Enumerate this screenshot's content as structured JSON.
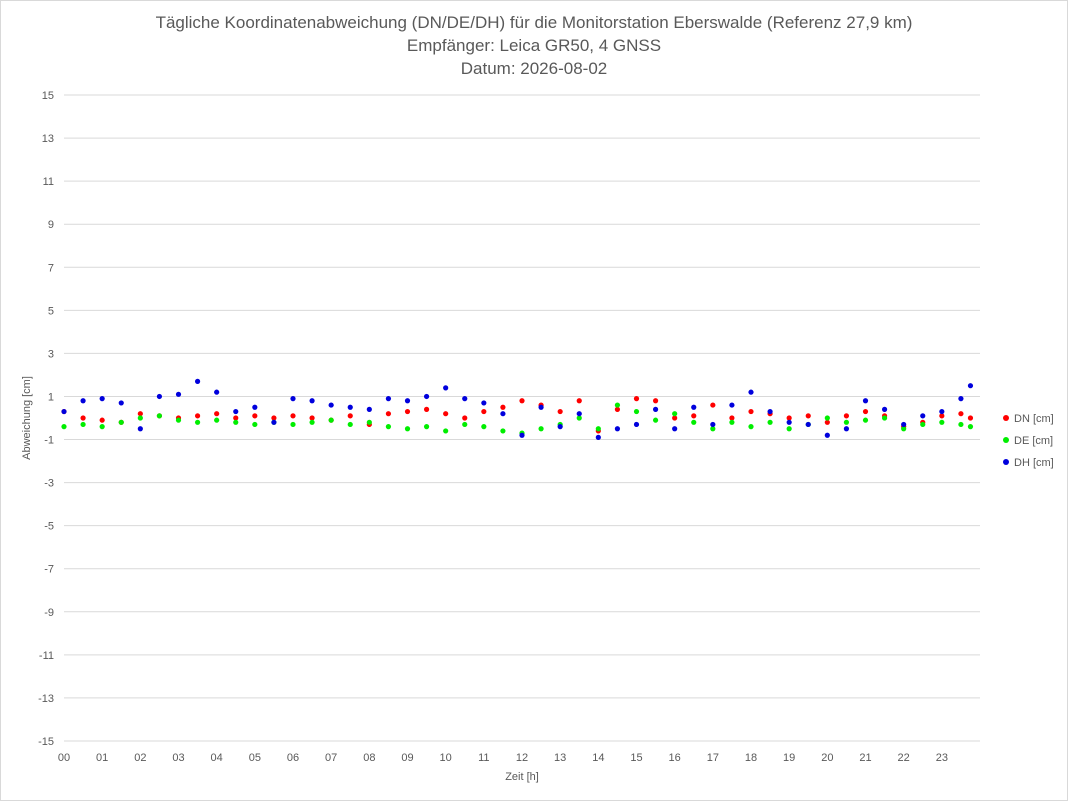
{
  "chart_data": {
    "type": "scatter",
    "title": "Tägliche Koordinatenabweichung (DN/DE/DH) für die Monitorstation Eberswalde (Referenz 27,9 km)",
    "subtitle": "Empfänger: Leica GR50, 4 GNSS",
    "date_line": "Datum: 2026-08-02",
    "xlabel": "Zeit [h]",
    "ylabel": "Abweichung [cm]",
    "xlim": [
      0,
      24
    ],
    "ylim": [
      -15,
      15
    ],
    "x_ticks": [
      "00",
      "01",
      "02",
      "03",
      "04",
      "05",
      "06",
      "07",
      "08",
      "09",
      "10",
      "11",
      "12",
      "13",
      "14",
      "15",
      "16",
      "17",
      "18",
      "19",
      "20",
      "21",
      "22",
      "23"
    ],
    "y_ticks": [
      15,
      13,
      11,
      9,
      7,
      5,
      3,
      1,
      -1,
      -3,
      -5,
      -7,
      -9,
      -11,
      -13,
      -15
    ],
    "y_tick_labels": [
      "15",
      "13",
      "11",
      "9",
      "7",
      "5",
      "3",
      "1",
      "-1",
      "-3",
      "-5",
      "-7",
      "-9",
      "-11",
      "-13",
      "-15"
    ],
    "grid": "horizontal",
    "legend": "right",
    "x": [
      0.0,
      0.5,
      1.0,
      1.5,
      2.0,
      2.5,
      3.0,
      3.5,
      4.0,
      4.5,
      5.0,
      5.5,
      6.0,
      6.5,
      7.0,
      7.5,
      8.0,
      8.5,
      9.0,
      9.5,
      10.0,
      10.5,
      11.0,
      11.5,
      12.0,
      12.5,
      13.0,
      13.5,
      14.0,
      14.5,
      15.0,
      15.5,
      16.0,
      16.5,
      17.0,
      17.5,
      18.0,
      18.5,
      19.0,
      19.5,
      20.0,
      20.5,
      21.0,
      21.5,
      22.0,
      22.5,
      23.0,
      23.5,
      23.75
    ],
    "series": [
      {
        "name": "DN [cm]",
        "color": "#ff0000",
        "values": [
          0.3,
          0.0,
          -0.1,
          -0.2,
          0.2,
          0.1,
          0.0,
          0.1,
          0.2,
          0.0,
          0.1,
          0.0,
          0.1,
          0.0,
          -0.1,
          0.1,
          -0.3,
          0.2,
          0.3,
          0.4,
          0.2,
          0.0,
          0.3,
          0.5,
          0.8,
          0.6,
          0.3,
          0.8,
          -0.6,
          0.4,
          0.9,
          0.8,
          0.0,
          0.1,
          0.6,
          0.0,
          0.3,
          0.2,
          0.0,
          0.1,
          -0.2,
          0.1,
          0.3,
          0.1,
          -0.4,
          -0.2,
          0.1,
          0.2,
          0.0
        ]
      },
      {
        "name": "DE [cm]",
        "color": "#00ee00",
        "values": [
          -0.4,
          -0.3,
          -0.4,
          -0.2,
          0.0,
          0.1,
          -0.1,
          -0.2,
          -0.1,
          -0.2,
          -0.3,
          -0.2,
          -0.3,
          -0.2,
          -0.1,
          -0.3,
          -0.2,
          -0.4,
          -0.5,
          -0.4,
          -0.6,
          -0.3,
          -0.4,
          -0.6,
          -0.7,
          -0.5,
          -0.3,
          0.0,
          -0.5,
          0.6,
          0.3,
          -0.1,
          0.2,
          -0.2,
          -0.5,
          -0.2,
          -0.4,
          -0.2,
          -0.5,
          -0.3,
          0.0,
          -0.2,
          -0.1,
          0.0,
          -0.5,
          -0.3,
          -0.2,
          -0.3,
          -0.4
        ]
      },
      {
        "name": "DH [cm]",
        "color": "#0000dd",
        "values": [
          0.3,
          0.8,
          0.9,
          0.7,
          -0.5,
          1.0,
          1.1,
          1.7,
          1.2,
          0.3,
          0.5,
          -0.2,
          0.9,
          0.8,
          0.6,
          0.5,
          0.4,
          0.9,
          0.8,
          1.0,
          1.4,
          0.9,
          0.7,
          0.2,
          -0.8,
          0.5,
          -0.4,
          0.2,
          -0.9,
          -0.5,
          -0.3,
          0.4,
          -0.5,
          0.5,
          -0.3,
          0.6,
          1.2,
          0.3,
          -0.2,
          -0.3,
          -0.8,
          -0.5,
          0.8,
          0.4,
          -0.3,
          0.1,
          0.3,
          0.9,
          1.5
        ]
      }
    ]
  }
}
